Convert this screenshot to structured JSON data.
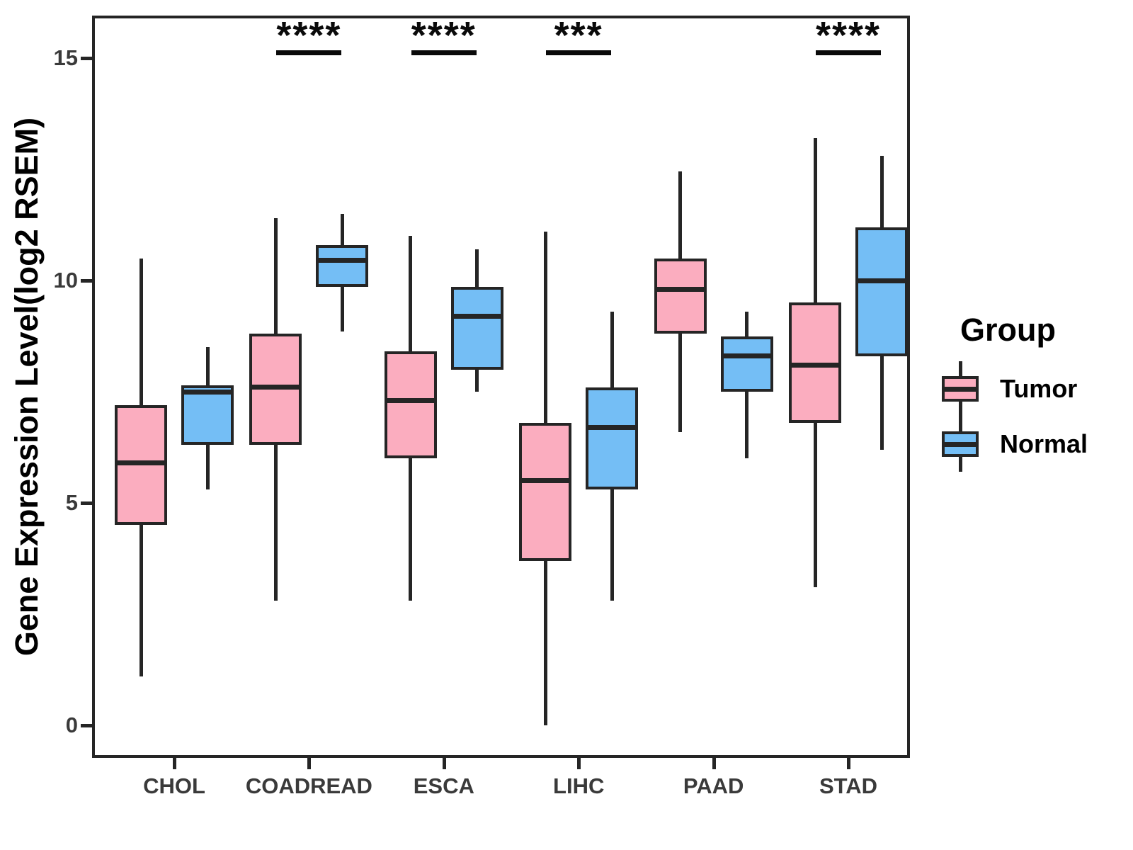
{
  "chart_data": {
    "type": "boxplot",
    "title": "",
    "xlabel": "",
    "ylabel": "Gene Expression Level(log2 RSEM)",
    "ylim": [
      -0.75,
      15.95
    ],
    "yticks": [
      0,
      5,
      10,
      15
    ],
    "grid": "off",
    "categories": [
      "CHOL",
      "COADREAD",
      "ESCA",
      "LIHC",
      "PAAD",
      "STAD"
    ],
    "series": [
      {
        "name": "Tumor",
        "color": "#FBADBF",
        "boxes": [
          {
            "category": "CHOL",
            "whisker_low": 1.1,
            "q1": 4.5,
            "median": 5.9,
            "q3": 7.2,
            "whisker_high": 10.5
          },
          {
            "category": "COADREAD",
            "whisker_low": 2.8,
            "q1": 6.3,
            "median": 7.6,
            "q3": 8.8,
            "whisker_high": 11.4
          },
          {
            "category": "ESCA",
            "whisker_low": 2.8,
            "q1": 6.0,
            "median": 7.3,
            "q3": 8.4,
            "whisker_high": 11.0
          },
          {
            "category": "LIHC",
            "whisker_low": 0.0,
            "q1": 3.7,
            "median": 5.5,
            "q3": 6.8,
            "whisker_high": 11.1
          },
          {
            "category": "PAAD",
            "whisker_low": 6.6,
            "q1": 8.8,
            "median": 9.8,
            "q3": 10.5,
            "whisker_high": 12.45
          },
          {
            "category": "STAD",
            "whisker_low": 3.1,
            "q1": 6.8,
            "median": 8.1,
            "q3": 9.5,
            "whisker_high": 13.2
          }
        ]
      },
      {
        "name": "Normal",
        "color": "#74BEF5",
        "boxes": [
          {
            "category": "CHOL",
            "whisker_low": 5.3,
            "q1": 6.3,
            "median": 7.5,
            "q3": 7.65,
            "whisker_high": 8.5
          },
          {
            "category": "COADREAD",
            "whisker_low": 8.85,
            "q1": 9.85,
            "median": 10.45,
            "q3": 10.8,
            "whisker_high": 11.5
          },
          {
            "category": "ESCA",
            "whisker_low": 7.5,
            "q1": 8.0,
            "median": 9.2,
            "q3": 9.85,
            "whisker_high": 10.7
          },
          {
            "category": "LIHC",
            "whisker_low": 2.8,
            "q1": 5.3,
            "median": 6.7,
            "q3": 7.6,
            "whisker_high": 9.3
          },
          {
            "category": "PAAD",
            "whisker_low": 6.0,
            "q1": 7.5,
            "median": 8.3,
            "q3": 8.75,
            "whisker_high": 9.3
          },
          {
            "category": "STAD",
            "whisker_low": 6.2,
            "q1": 8.3,
            "median": 10.0,
            "q3": 11.2,
            "whisker_high": 12.8
          }
        ]
      }
    ],
    "significance": [
      {
        "category": "COADREAD",
        "label": "****"
      },
      {
        "category": "ESCA",
        "label": "****"
      },
      {
        "category": "LIHC",
        "label": "***"
      },
      {
        "category": "STAD",
        "label": "****"
      }
    ],
    "legend": {
      "title": "Group",
      "position": "right",
      "entries": [
        {
          "label": "Tumor",
          "color": "#FBADBF"
        },
        {
          "label": "Normal",
          "color": "#74BEF5"
        }
      ]
    },
    "colors": {
      "box_border": "#252525",
      "axis": "#252525",
      "tick_label": "#3a3a3a"
    }
  }
}
